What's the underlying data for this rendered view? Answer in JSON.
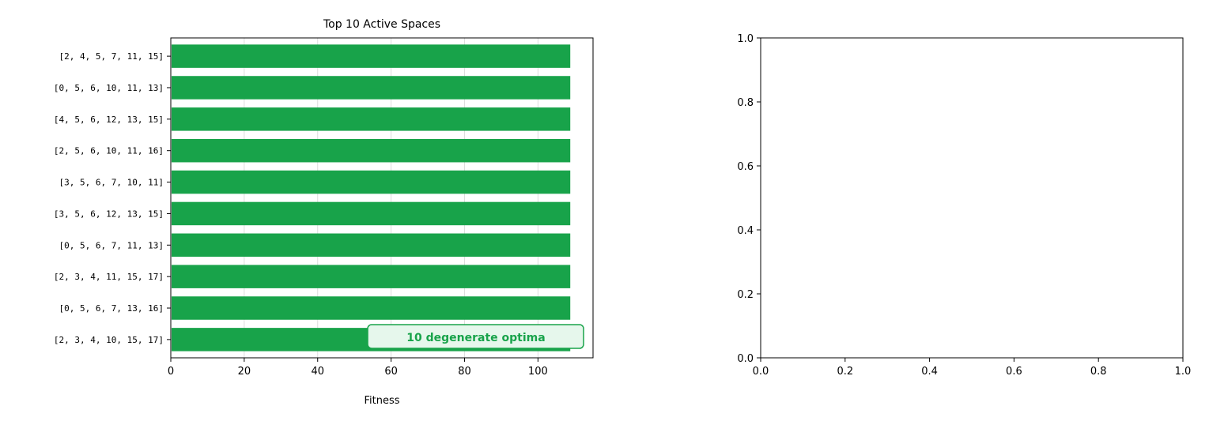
{
  "chart_data": [
    {
      "type": "bar",
      "orientation": "horizontal",
      "title": "Top 10 Active Spaces",
      "xlabel": "Fitness",
      "ylabel": "",
      "xlim": [
        0,
        115
      ],
      "xticks": [
        0,
        20,
        40,
        60,
        80,
        100
      ],
      "grid": "x",
      "bar_color": "#18a34a",
      "categories": [
        "[2, 4, 5, 7, 11, 15]",
        "[0, 5, 6, 10, 11, 13]",
        "[4, 5, 6, 12, 13, 15]",
        "[2, 5, 6, 10, 11, 16]",
        "[3, 5, 6, 7, 10, 11]",
        "[3, 5, 6, 12, 13, 15]",
        "[0, 5, 6, 7, 11, 13]",
        "[2, 3, 4, 11, 15, 17]",
        "[0, 5, 6, 7, 13, 16]",
        "[2, 3, 4, 10, 15, 17]"
      ],
      "values": [
        108.8,
        108.8,
        108.8,
        108.8,
        108.8,
        108.8,
        108.8,
        108.8,
        108.8,
        108.8
      ],
      "annotation": {
        "text": "10 degenerate optima",
        "placement": "bottom-right",
        "text_color": "#18a34a",
        "box_face": "#e6f7ec",
        "box_edge": "#18a34a"
      }
    },
    {
      "type": "empty",
      "title": "",
      "xlabel": "",
      "ylabel": "",
      "xlim": [
        0,
        1
      ],
      "ylim": [
        0,
        1
      ],
      "xticks": [
        0.0,
        0.2,
        0.4,
        0.6,
        0.8,
        1.0
      ],
      "yticks": [
        0.0,
        0.2,
        0.4,
        0.6,
        0.8,
        1.0
      ],
      "xtick_labels": [
        "0.0",
        "0.2",
        "0.4",
        "0.6",
        "0.8",
        "1.0"
      ],
      "ytick_labels": [
        "0.0",
        "0.2",
        "0.4",
        "0.6",
        "0.8",
        "1.0"
      ]
    }
  ]
}
